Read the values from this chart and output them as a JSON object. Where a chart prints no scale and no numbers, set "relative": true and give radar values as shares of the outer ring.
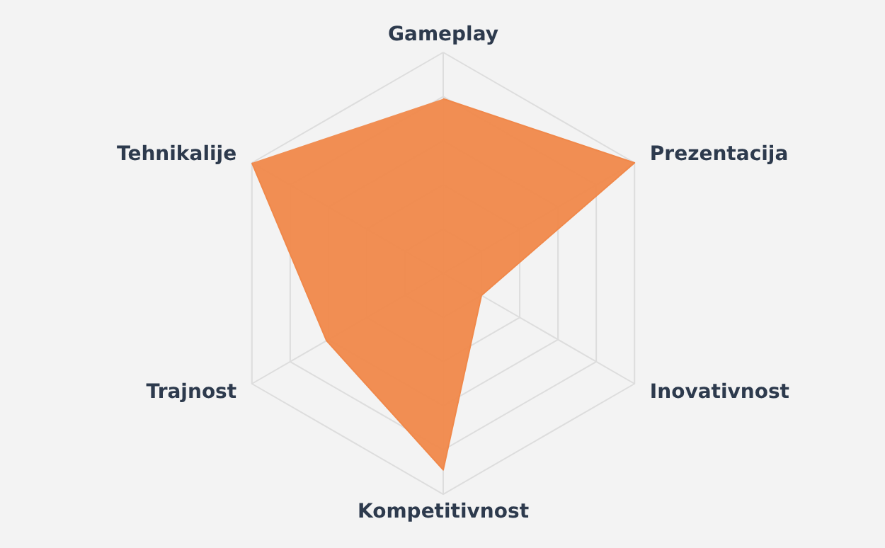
{
  "chart_data": {
    "type": "radar",
    "relative": true,
    "grid": true,
    "categories": [
      "Gameplay",
      "Prezentacija",
      "Inovativnost",
      "Kompetitivnost",
      "Trajnost",
      "Tehnikalije"
    ],
    "series": [
      {
        "color": "#f0884a",
        "values": [
          0.79,
          1.0,
          0.2,
          0.89,
          0.61,
          1.0
        ]
      }
    ]
  }
}
